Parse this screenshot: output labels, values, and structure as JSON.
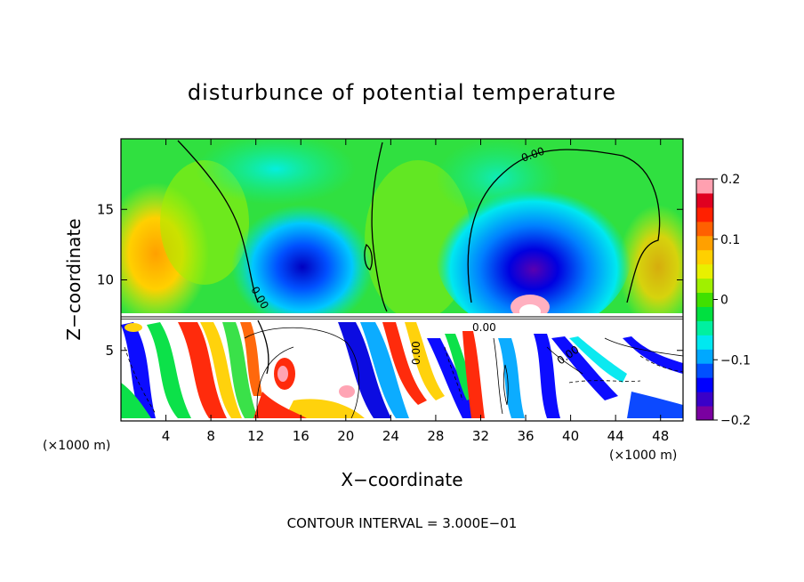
{
  "chart_data": {
    "type": "heatmap",
    "title": "disturbunce of potential temperature",
    "xlabel": "X−coordinate",
    "ylabel": "Z−coordinate",
    "x_unit_label": "(×1000 m)",
    "z_unit_label": "(×1000 m)",
    "xlim": [
      0,
      50
    ],
    "ylim": [
      0,
      20
    ],
    "x_ticks": [
      4,
      8,
      12,
      16,
      20,
      24,
      28,
      32,
      36,
      40,
      44,
      48
    ],
    "y_ticks": [
      5,
      10,
      15
    ],
    "colorbar": {
      "range": [
        -0.2,
        0.2
      ],
      "ticks": [
        0.2,
        0.1,
        0,
        -0.1,
        -0.2
      ],
      "tick_labels": [
        "0.2",
        "0.1",
        "0",
        "−0.1",
        "−0.2"
      ],
      "colors": [
        "#7a00a0",
        "#3a00c8",
        "#0000ff",
        "#0050ff",
        "#00a8ff",
        "#00e8f0",
        "#00f0a0",
        "#00e040",
        "#40e000",
        "#a0f000",
        "#e8f000",
        "#ffd000",
        "#ffa000",
        "#ff6000",
        "#ff2000",
        "#e00020",
        "#ffa0b0"
      ]
    },
    "contour_labels": [
      "0.00",
      "0.00",
      "0.00",
      "0.00",
      "0.00"
    ],
    "annotation": "CONTOUR INTERVAL = 3.000E−01"
  }
}
